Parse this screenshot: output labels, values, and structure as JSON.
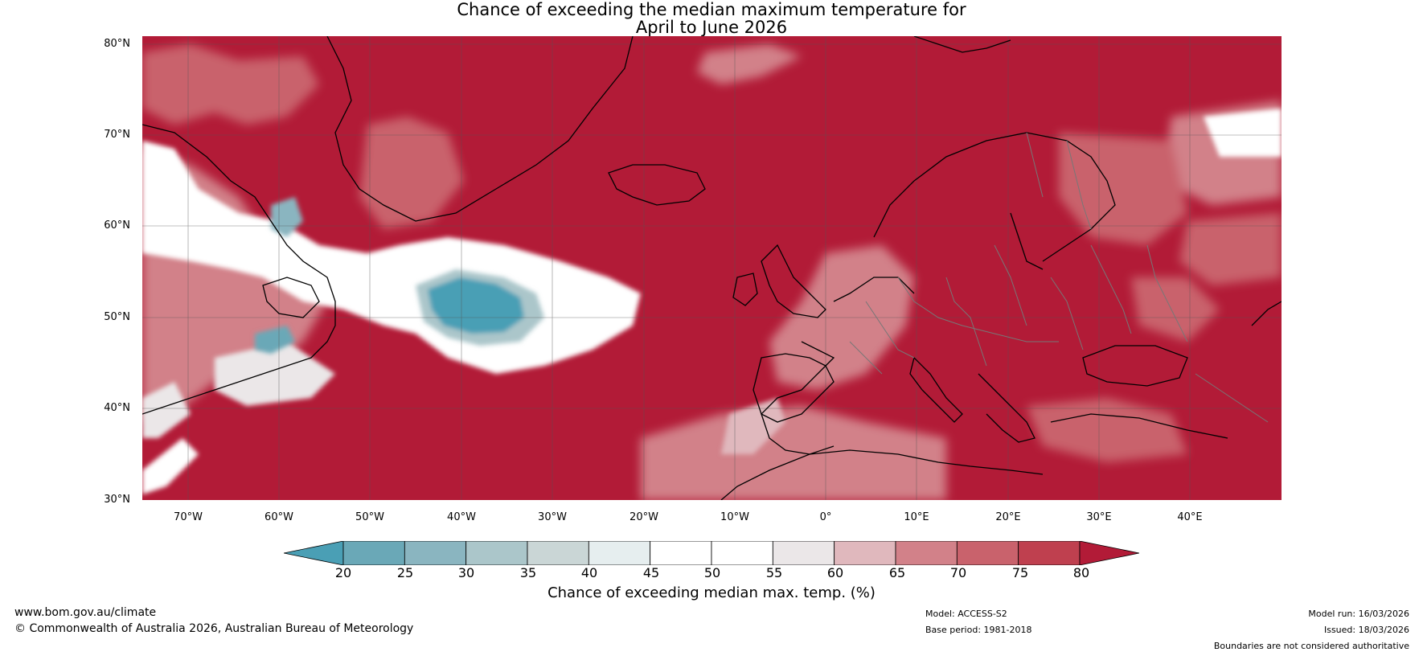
{
  "title": {
    "line1": "Chance of exceeding the median maximum temperature for",
    "line2": "April to June 2026"
  },
  "map": {
    "latitude_labels": [
      "80°N",
      "70°N",
      "60°N",
      "50°N",
      "40°N",
      "30°N"
    ],
    "longitude_labels": [
      "70°W",
      "60°W",
      "50°W",
      "40°W",
      "30°W",
      "20°W",
      "10°W",
      "0°",
      "10°E",
      "20°E",
      "30°E",
      "40°E"
    ],
    "region": "North Atlantic and Europe",
    "lat_range": [
      30,
      80
    ],
    "lon_range": [
      -75,
      50
    ]
  },
  "colorbar": {
    "ticks": [
      "20",
      "25",
      "30",
      "35",
      "40",
      "45",
      "50",
      "55",
      "60",
      "65",
      "70",
      "75",
      "80"
    ],
    "colors": [
      "#4a9fb5",
      "#6aa8b7",
      "#8ab5c0",
      "#abc6ca",
      "#cad6d6",
      "#e6eeef",
      "#ffffff",
      "#ffffff",
      "#ebe7e8",
      "#e0b8bd",
      "#d28189",
      "#c9626c",
      "#bf404f",
      "#b21b37"
    ],
    "label": "Chance of exceeding median max. temp. (%)"
  },
  "footer": {
    "website": "www.bom.gov.au/climate",
    "copyright": "© Commonwealth of Australia 2026, Australian Bureau of Meteorology",
    "model": "Model: ACCESS-S2",
    "base_period": "Base period: 1981-2018",
    "model_run": "Model run: 16/03/2026",
    "issued": "Issued: 18/03/2026",
    "disclaimer": "Boundaries are not considered authoritative"
  }
}
